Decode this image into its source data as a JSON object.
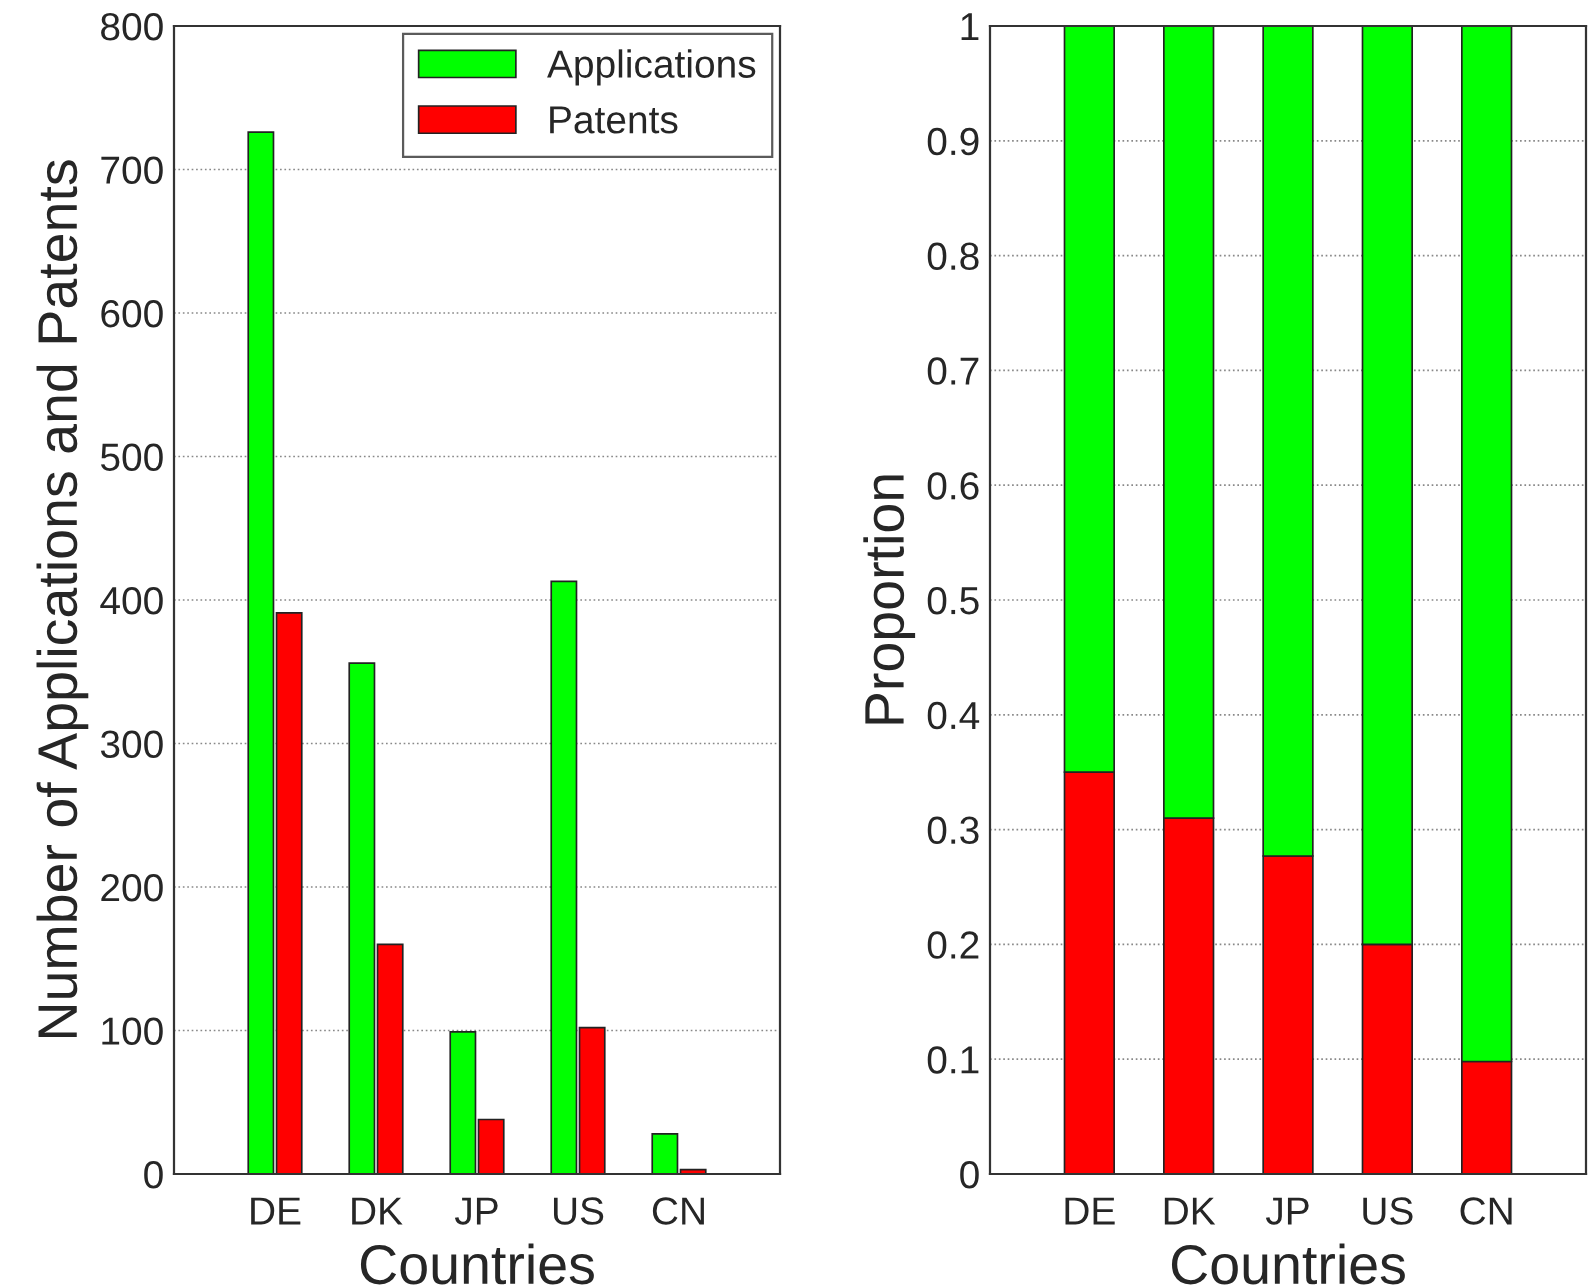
{
  "chart_data": [
    {
      "type": "bar",
      "xlabel": "Countries",
      "ylabel": "Number of Applications and Patents",
      "categories": [
        "DE",
        "DK",
        "JP",
        "US",
        "CN"
      ],
      "series": [
        {
          "name": "Applications",
          "color": "#00ff00",
          "values": [
            726,
            356,
            99,
            413,
            28
          ]
        },
        {
          "name": "Patents",
          "color": "#ff0000",
          "values": [
            391,
            160,
            38,
            102,
            3
          ]
        }
      ],
      "ylim": [
        0,
        800
      ],
      "yticks": [
        0,
        100,
        200,
        300,
        400,
        500,
        600,
        700,
        800
      ],
      "grid": "y",
      "legend": "top right"
    },
    {
      "type": "bar",
      "stacked": true,
      "xlabel": "Countries",
      "ylabel": "Proportion",
      "categories": [
        "DE",
        "DK",
        "JP",
        "US",
        "CN"
      ],
      "series": [
        {
          "color": "#ff0000",
          "values": [
            0.35,
            0.31,
            0.277,
            0.2,
            0.098
          ]
        },
        {
          "color": "#00ff00",
          "values": [
            0.65,
            0.69,
            0.723,
            0.8,
            0.902
          ]
        }
      ],
      "ylim": [
        0,
        1
      ],
      "yticks": [
        0,
        0.1,
        0.2,
        0.3,
        0.4,
        0.5,
        0.6,
        0.7,
        0.8,
        0.9,
        1
      ],
      "grid": "y"
    }
  ]
}
